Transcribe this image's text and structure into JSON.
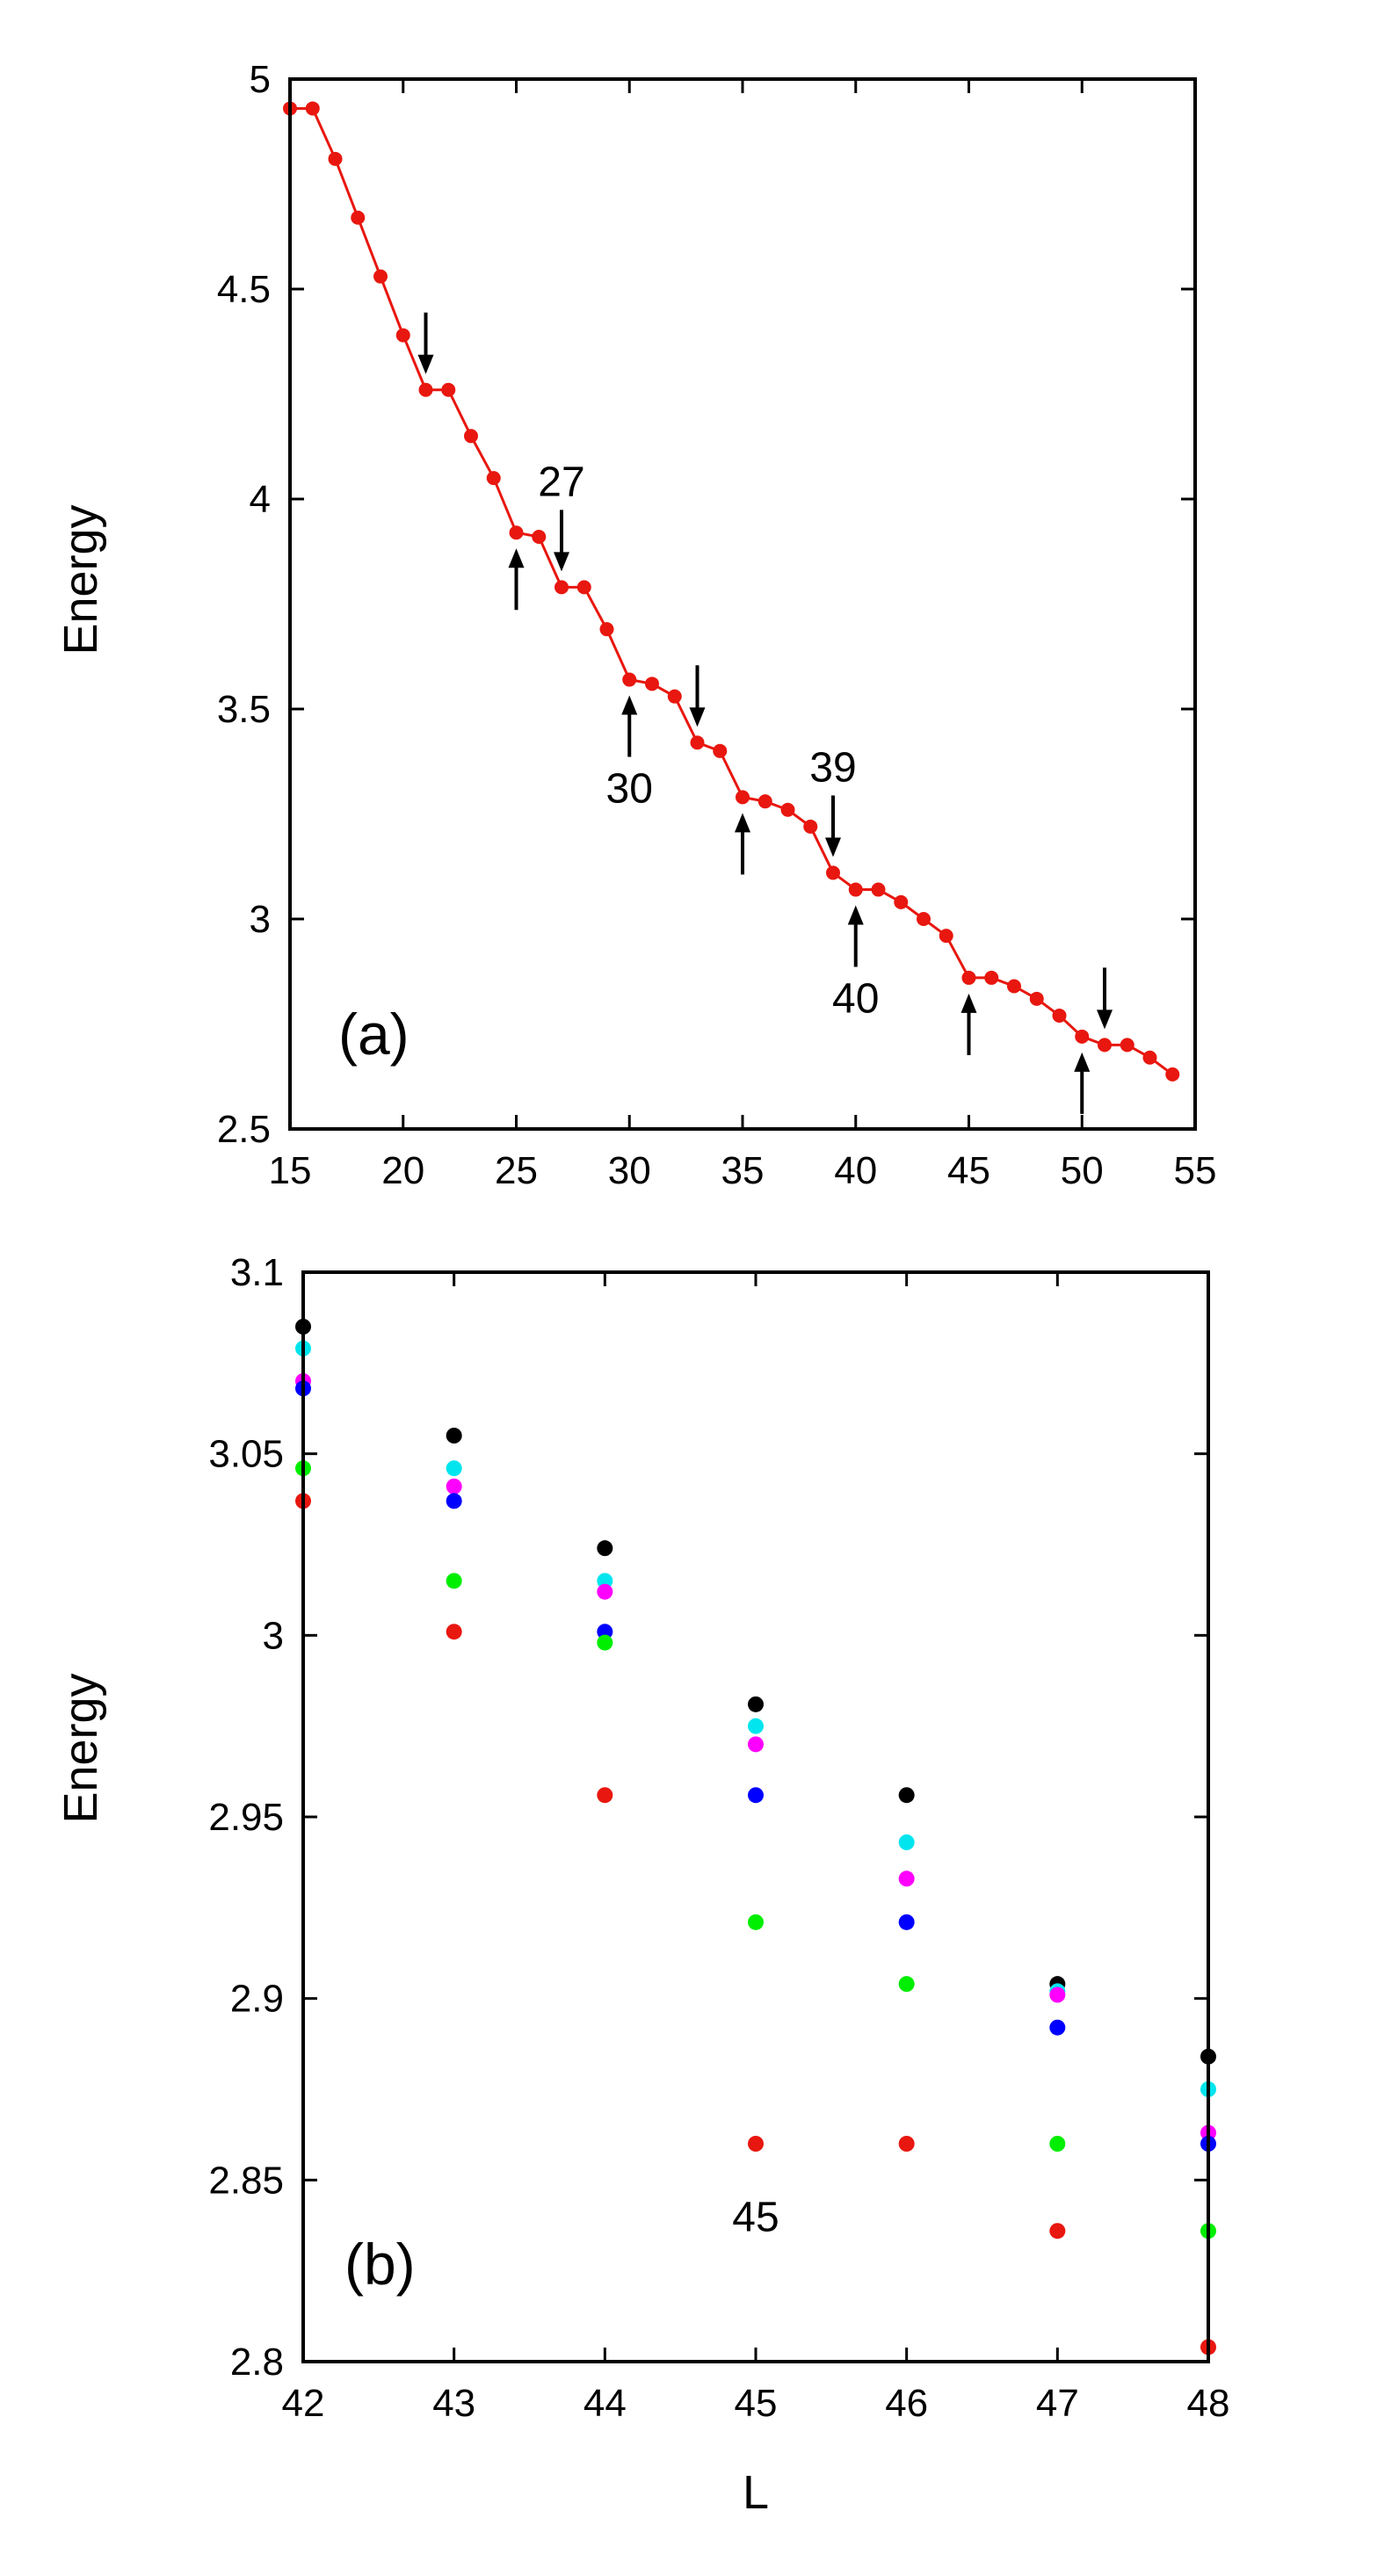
{
  "chart_data": [
    {
      "type": "line",
      "panel_label": "(a)",
      "title": "",
      "xlabel": "",
      "ylabel": "Energy",
      "xlim": [
        15,
        55
      ],
      "ylim": [
        2.5,
        5
      ],
      "xticks": [
        15,
        20,
        25,
        30,
        35,
        40,
        45,
        50,
        55
      ],
      "yticks": [
        2.5,
        3,
        3.5,
        4,
        4.5,
        5
      ],
      "xtick_labels": [
        "15",
        "20",
        "25",
        "30",
        "35",
        "40",
        "45",
        "50",
        "55"
      ],
      "ytick_labels": [
        "2.5",
        "3",
        "3.5",
        "4",
        "4.5",
        "5"
      ],
      "grid": false,
      "series": [
        {
          "name": "Energy",
          "color": "#e8170f",
          "x": [
            15,
            16,
            17,
            18,
            19,
            20,
            21,
            22,
            23,
            24,
            25,
            26,
            27,
            28,
            29,
            30,
            31,
            32,
            33,
            34,
            35,
            36,
            37,
            38,
            39,
            40,
            41,
            42,
            43,
            44,
            45,
            46,
            47,
            48,
            49,
            50,
            51,
            52,
            53,
            54
          ],
          "values": [
            4.93,
            4.93,
            4.81,
            4.67,
            4.53,
            4.39,
            4.26,
            4.26,
            4.15,
            4.05,
            3.92,
            3.91,
            3.79,
            3.79,
            3.69,
            3.57,
            3.56,
            3.53,
            3.42,
            3.4,
            3.29,
            3.28,
            3.26,
            3.22,
            3.11,
            3.07,
            3.07,
            3.04,
            3.0,
            2.96,
            2.86,
            2.86,
            2.84,
            2.81,
            2.77,
            2.72,
            2.7,
            2.7,
            2.67,
            2.63
          ]
        }
      ],
      "annotations": [
        {
          "x": 21,
          "direction": "down",
          "label": ""
        },
        {
          "x": 25,
          "direction": "up",
          "label": ""
        },
        {
          "x": 27,
          "direction": "down",
          "label": "27"
        },
        {
          "x": 30,
          "direction": "up",
          "label": "30"
        },
        {
          "x": 33,
          "direction": "down",
          "label": ""
        },
        {
          "x": 35,
          "direction": "up",
          "label": ""
        },
        {
          "x": 39,
          "direction": "down",
          "label": "39"
        },
        {
          "x": 40,
          "direction": "up",
          "label": "40"
        },
        {
          "x": 45,
          "direction": "up",
          "label": ""
        },
        {
          "x": 50,
          "direction": "up",
          "label": ""
        },
        {
          "x": 51,
          "direction": "down",
          "label": ""
        }
      ]
    },
    {
      "type": "scatter",
      "panel_label": "(b)",
      "title": "",
      "xlabel": "L",
      "ylabel": "Energy",
      "xlim": [
        42,
        48
      ],
      "ylim": [
        2.8,
        3.1
      ],
      "xticks": [
        42,
        43,
        44,
        45,
        46,
        47,
        48
      ],
      "yticks": [
        2.8,
        2.85,
        2.9,
        2.95,
        3,
        3.05,
        3.1
      ],
      "xtick_labels": [
        "42",
        "43",
        "44",
        "45",
        "46",
        "47",
        "48"
      ],
      "ytick_labels": [
        "2.8",
        "2.85",
        "2.9",
        "2.95",
        "3",
        "3.05",
        "3.1"
      ],
      "grid": false,
      "categories": [
        42,
        43,
        44,
        45,
        46,
        47,
        48
      ],
      "series": [
        {
          "name": "black",
          "color": "#000000",
          "values": [
            3.085,
            3.055,
            3.024,
            2.981,
            2.956,
            2.904,
            2.884
          ]
        },
        {
          "name": "cyan",
          "color": "#00e5ee",
          "values": [
            3.079,
            3.046,
            3.015,
            2.975,
            2.943,
            2.902,
            2.875
          ]
        },
        {
          "name": "magenta",
          "color": "#ff00ff",
          "values": [
            3.07,
            3.041,
            3.012,
            2.97,
            2.933,
            2.901,
            2.863
          ]
        },
        {
          "name": "blue",
          "color": "#0000ff",
          "values": [
            3.068,
            3.037,
            3.001,
            2.956,
            2.921,
            2.892,
            2.86
          ]
        },
        {
          "name": "green",
          "color": "#00ee00",
          "values": [
            3.046,
            3.015,
            2.998,
            2.921,
            2.904,
            2.86,
            2.836
          ]
        },
        {
          "name": "red",
          "color": "#e8170f",
          "values": [
            3.037,
            3.001,
            2.956,
            2.86,
            2.86,
            2.836,
            2.804
          ]
        }
      ],
      "annotations": [
        {
          "x": 45,
          "y": 2.84,
          "label": "45"
        }
      ]
    }
  ]
}
